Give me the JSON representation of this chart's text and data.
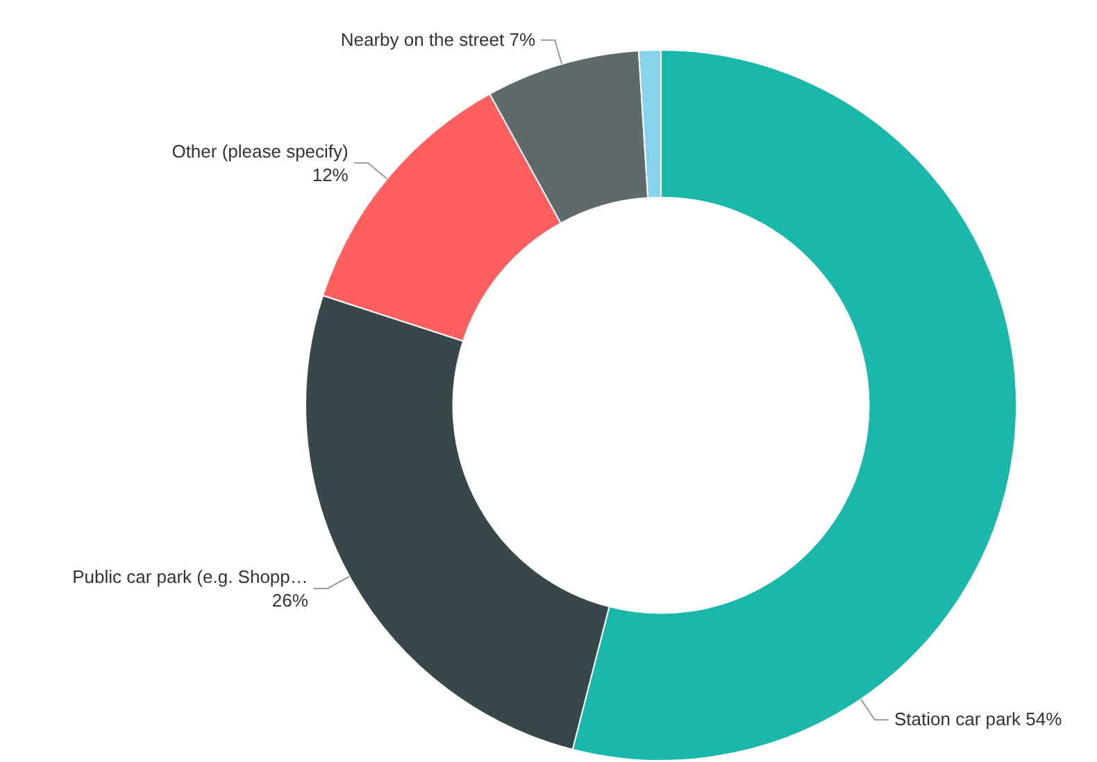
{
  "chart_data": {
    "type": "donut",
    "categories": [
      "Station car park",
      "Public car park (e.g. Shopp…",
      "Other (please specify)",
      "Nearby on the street",
      null
    ],
    "values": [
      54,
      26,
      12,
      7,
      1
    ],
    "colors": [
      "#1ab7ab",
      "#37474a",
      "#ff5f5f",
      "#5f6a6b",
      "#87d2ec"
    ],
    "value_labels": [
      "54%",
      "26%",
      "12%",
      "7%",
      null
    ]
  }
}
